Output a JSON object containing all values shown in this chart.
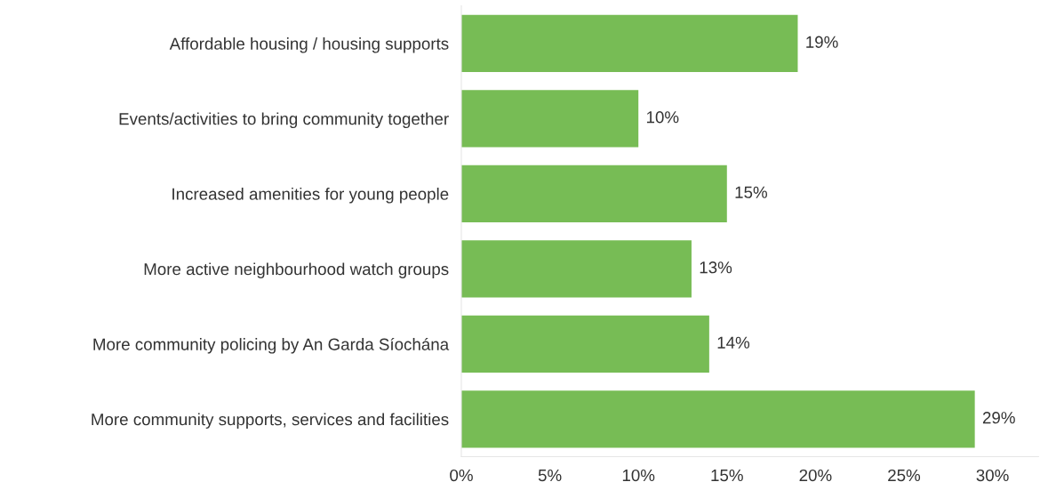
{
  "chart_data": {
    "type": "bar",
    "orientation": "horizontal",
    "categories": [
      "Affordable housing / housing supports",
      "Events/activities to bring community together",
      "Increased amenities for young people",
      "More active neighbourhood watch groups",
      "More community policing by An Garda Síochána",
      "More community supports, services and facilities"
    ],
    "values": [
      19,
      10,
      15,
      13,
      14,
      29
    ],
    "value_labels": [
      "19%",
      "10%",
      "15%",
      "13%",
      "14%",
      "29%"
    ],
    "color": "#77bc55",
    "xlim": [
      0,
      32.6
    ],
    "xticks": [
      {
        "value": 0,
        "label": "0%"
      },
      {
        "value": 5,
        "label": "5%"
      },
      {
        "value": 10,
        "label": "10%"
      },
      {
        "value": 15,
        "label": "15%"
      },
      {
        "value": 20,
        "label": "20%"
      },
      {
        "value": 25,
        "label": "25%"
      },
      {
        "value": 30,
        "label": "30%"
      }
    ],
    "grid": false,
    "legend": false
  }
}
